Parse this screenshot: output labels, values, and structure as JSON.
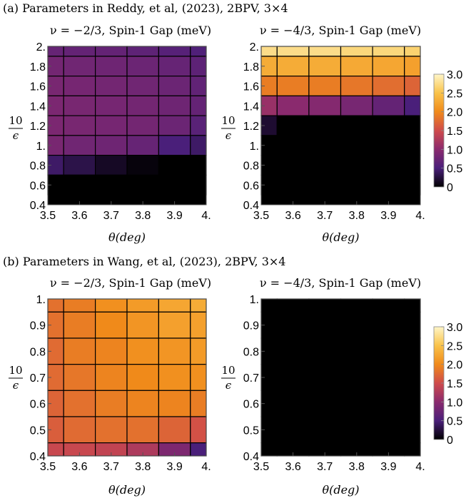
{
  "panels": [
    {
      "label": "(a) Parameters in Reddy, et al, (2023), 2BPV, 3×4"
    },
    {
      "label": "(b) Parameters in Wang, et al, (2023), 2BPV, 3×4"
    }
  ],
  "colorbar": {
    "ticks": [
      "0",
      "0.5",
      "1.0",
      "1.5",
      "2.0",
      "2.5",
      "3.0"
    ],
    "range": [
      0,
      3
    ]
  },
  "colors": {
    "gap_0.0": "#000000",
    "gap_0.5": "#4a1f7a",
    "gap_1.0": "#8a2a6e",
    "gap_1.5": "#cf4b4b",
    "gap_2.0": "#f08a1a",
    "gap_2.5": "#f9c24a",
    "gap_3.0": "#fff6c8"
  },
  "chart_data": [
    {
      "type": "heatmap",
      "title": "ν = −2/3, Spin-1 Gap (meV)",
      "xlabel": "θ(deg)",
      "ylabel_num": "10",
      "ylabel_den": "ϵ",
      "xticks": [
        "3.5",
        "3.6",
        "3.7",
        "3.8",
        "3.9",
        "4."
      ],
      "yticks": [
        "0.4",
        "0.6",
        "0.8",
        "1.",
        "1.2",
        "1.4",
        "1.6",
        "1.8",
        "2."
      ],
      "xlim": [
        3.5,
        4.0
      ],
      "ylim": [
        0.4,
        2.0
      ],
      "x": [
        3.5,
        3.6,
        3.7,
        3.8,
        3.9,
        4.0
      ],
      "y": [
        2.0,
        1.8,
        1.6,
        1.4,
        1.2,
        1.0,
        0.8,
        0.6
      ],
      "values": [
        [
          0.72,
          0.7,
          0.7,
          0.66,
          0.6,
          0.55
        ],
        [
          0.82,
          0.8,
          0.78,
          0.76,
          0.72,
          0.65
        ],
        [
          0.86,
          0.84,
          0.82,
          0.8,
          0.76,
          0.68
        ],
        [
          0.88,
          0.86,
          0.84,
          0.82,
          0.78,
          0.7
        ],
        [
          0.88,
          0.86,
          0.84,
          0.82,
          0.76,
          0.62
        ],
        [
          0.86,
          0.8,
          0.78,
          0.72,
          0.5,
          0.42
        ],
        [
          0.42,
          0.3,
          0.15,
          0.05,
          0.0,
          0.0
        ],
        [
          0.0,
          0.0,
          0.0,
          0.0,
          0.0,
          0.0
        ]
      ]
    },
    {
      "type": "heatmap",
      "title": "ν = −4/3, Spin-1 Gap (meV)",
      "xlabel": "θ(deg)",
      "ylabel_num": "10",
      "ylabel_den": "ϵ",
      "xticks": [
        "3.5",
        "3.6",
        "3.7",
        "3.8",
        "3.9",
        "4."
      ],
      "yticks": [
        "0.4",
        "0.6",
        "0.8",
        "1.",
        "1.2",
        "1.4",
        "1.6",
        "1.8",
        "2."
      ],
      "xlim": [
        3.5,
        4.0
      ],
      "ylim": [
        0.4,
        2.0
      ],
      "x": [
        3.5,
        3.6,
        3.7,
        3.8,
        3.9,
        4.0
      ],
      "y": [
        2.0,
        1.8,
        1.6,
        1.4,
        1.2,
        1.0,
        0.8,
        0.6
      ],
      "values": [
        [
          2.75,
          2.75,
          2.75,
          2.7,
          2.7,
          2.65
        ],
        [
          2.3,
          2.3,
          2.3,
          2.28,
          2.25,
          2.2
        ],
        [
          1.9,
          1.9,
          1.9,
          1.85,
          1.78,
          1.7
        ],
        [
          1.1,
          1.0,
          0.95,
          0.85,
          0.7,
          0.5
        ],
        [
          0.2,
          0.0,
          0.0,
          0.0,
          0.0,
          0.0
        ],
        [
          0.0,
          0.0,
          0.0,
          0.0,
          0.0,
          0.0
        ],
        [
          0.0,
          0.0,
          0.0,
          0.0,
          0.0,
          0.0
        ],
        [
          0.0,
          0.0,
          0.0,
          0.0,
          0.0,
          0.0
        ]
      ]
    },
    {
      "type": "heatmap",
      "title": "ν = −2/3, Spin-1 Gap (meV)",
      "xlabel": "θ(deg)",
      "ylabel_num": "10",
      "ylabel_den": "ϵ",
      "xticks": [
        "3.5",
        "3.6",
        "3.7",
        "3.8",
        "3.9",
        "4."
      ],
      "yticks": [
        "0.4",
        "0.5",
        "0.6",
        "0.7",
        "0.8",
        "0.9",
        "1."
      ],
      "xlim": [
        3.5,
        4.0
      ],
      "ylim": [
        0.4,
        1.0
      ],
      "x": [
        3.5,
        3.6,
        3.7,
        3.8,
        3.9,
        4.0
      ],
      "y": [
        1.0,
        0.9,
        0.8,
        0.7,
        0.6,
        0.5,
        0.4
      ],
      "values": [
        [
          1.8,
          1.9,
          2.05,
          2.15,
          2.25,
          2.3
        ],
        [
          1.8,
          1.9,
          2.0,
          2.1,
          2.2,
          2.2
        ],
        [
          1.75,
          1.9,
          1.95,
          2.05,
          2.1,
          2.15
        ],
        [
          1.75,
          1.85,
          1.95,
          2.0,
          2.05,
          2.05
        ],
        [
          1.7,
          1.8,
          1.9,
          1.95,
          1.95,
          1.9
        ],
        [
          1.65,
          1.75,
          1.8,
          1.8,
          1.7,
          1.55
        ],
        [
          1.45,
          1.45,
          1.4,
          1.25,
          0.9,
          0.5
        ]
      ]
    },
    {
      "type": "heatmap",
      "title": "ν = −4/3, Spin-1 Gap (meV)",
      "xlabel": "θ(deg)",
      "ylabel_num": "10",
      "ylabel_den": "ϵ",
      "xticks": [
        "3.5",
        "3.6",
        "3.7",
        "3.8",
        "3.9",
        "4."
      ],
      "yticks": [
        "0.4",
        "0.5",
        "0.6",
        "0.7",
        "0.8",
        "0.9",
        "1."
      ],
      "xlim": [
        3.5,
        4.0
      ],
      "ylim": [
        0.4,
        1.0
      ],
      "x": [
        3.5,
        3.6,
        3.7,
        3.8,
        3.9,
        4.0
      ],
      "y": [
        1.0,
        0.9,
        0.8,
        0.7,
        0.6,
        0.5,
        0.4
      ],
      "values": [
        [
          0.0,
          0.0,
          0.0,
          0.0,
          0.0,
          0.0
        ],
        [
          0.0,
          0.0,
          0.0,
          0.0,
          0.0,
          0.0
        ],
        [
          0.0,
          0.0,
          0.0,
          0.0,
          0.0,
          0.0
        ],
        [
          0.0,
          0.0,
          0.0,
          0.0,
          0.0,
          0.0
        ],
        [
          0.0,
          0.0,
          0.0,
          0.0,
          0.0,
          0.0
        ],
        [
          0.0,
          0.0,
          0.0,
          0.0,
          0.0,
          0.0
        ],
        [
          0.0,
          0.0,
          0.0,
          0.0,
          0.0,
          0.0
        ]
      ]
    }
  ]
}
